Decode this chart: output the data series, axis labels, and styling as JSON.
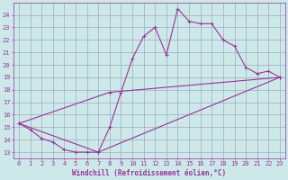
{
  "xlabel": "Windchill (Refroidissement éolien,°C)",
  "bg_color": "#cce8e8",
  "grid_color": "#9999bb",
  "line_color": "#993399",
  "line1_x": [
    0,
    1,
    2,
    3,
    4,
    5,
    6,
    7,
    8,
    9,
    10,
    11,
    12,
    13,
    14,
    15,
    16,
    17,
    18,
    19,
    20,
    21,
    22,
    23
  ],
  "line1_y": [
    15.3,
    14.8,
    14.1,
    13.8,
    13.2,
    13.0,
    13.0,
    13.0,
    15.0,
    17.8,
    20.5,
    22.3,
    23.0,
    20.8,
    24.5,
    23.5,
    23.3,
    23.3,
    22.0,
    21.5,
    19.8,
    19.3,
    19.5,
    19.0
  ],
  "line2_x": [
    0,
    8,
    23
  ],
  "line2_y": [
    15.3,
    17.8,
    19.0
  ],
  "line3_x": [
    0,
    7,
    23
  ],
  "line3_y": [
    15.3,
    13.0,
    19.0
  ],
  "xlim": [
    -0.5,
    23.5
  ],
  "ylim": [
    12.5,
    25.0
  ],
  "yticks": [
    13,
    14,
    15,
    16,
    17,
    18,
    19,
    20,
    21,
    22,
    23,
    24
  ],
  "xticks": [
    0,
    1,
    2,
    3,
    4,
    5,
    6,
    7,
    8,
    9,
    10,
    11,
    12,
    13,
    14,
    15,
    16,
    17,
    18,
    19,
    20,
    21,
    22,
    23
  ],
  "xlabel_fontsize": 5.5,
  "tick_fontsize": 5.0,
  "line_width": 0.8,
  "marker_size": 2.5
}
